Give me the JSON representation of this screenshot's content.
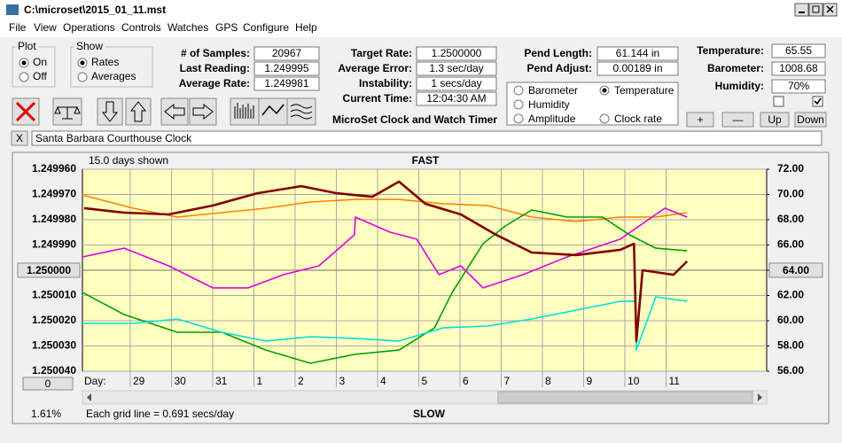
{
  "window": {
    "title": "C:\\microset\\2015_01_11.mst"
  },
  "menu": [
    "File",
    "View",
    "Operations",
    "Controls",
    "Watches",
    "GPS",
    "Configure",
    "Help"
  ],
  "plot": {
    "label": "Plot",
    "options": [
      "On",
      "Off"
    ],
    "selected": 0
  },
  "show": {
    "label": "Show",
    "options": [
      "Rates",
      "Averages"
    ],
    "selected": 0
  },
  "stats": [
    {
      "label": "# of Samples:",
      "value": "20967"
    },
    {
      "label": "Last Reading:",
      "value": "1.249995"
    },
    {
      "label": "Average Rate:",
      "value": "1.249981"
    }
  ],
  "timing": [
    {
      "label": "Target Rate:",
      "value": "1.2500000"
    },
    {
      "label": "Average Error:",
      "value": "1.3 sec/day"
    },
    {
      "label": "Instability:",
      "value": "1 secs/day"
    },
    {
      "label": "Current Time:",
      "value": "12:04:30 AM"
    }
  ],
  "pendulum": [
    {
      "label": "Pend Length:",
      "value": "61.144 in"
    },
    {
      "label": "Pend Adjust:",
      "value": "0.00189 in"
    }
  ],
  "environment": [
    {
      "label": "Temperature:",
      "value": "65.55"
    },
    {
      "label": "Barometer:",
      "value": "1008.68"
    },
    {
      "label": "Humidity:",
      "value": "70%"
    }
  ],
  "checkboxes": [
    false,
    true
  ],
  "app_title": "MicroSet Clock and Watch Timer",
  "buttons": [
    "+",
    "—",
    "Up",
    "Down"
  ],
  "close_button": "X",
  "watch_name": "Santa Barbara Courthouse Clock",
  "chart_data": {
    "type": "line",
    "top_label": "FAST",
    "bottom_label": "SLOW",
    "span_label": "15.0 days shown",
    "x_label": "Day:",
    "footer": "Each grid line = 0.691 secs/day",
    "zoom": "1.61%",
    "left_button": "0",
    "grid": true,
    "selected_series": 1,
    "y_button_tick": 4,
    "y2_button_tick": 4,
    "xlim": [
      0,
      16.6
    ],
    "xticks": [
      {
        "value": 1.16,
        "label": "29"
      },
      {
        "value": 2.16,
        "label": "30"
      },
      {
        "value": 3.16,
        "label": "31"
      },
      {
        "value": 4.16,
        "label": "1"
      },
      {
        "value": 5.16,
        "label": "2"
      },
      {
        "value": 6.16,
        "label": "3"
      },
      {
        "value": 7.16,
        "label": "4"
      },
      {
        "value": 8.16,
        "label": "5"
      },
      {
        "value": 9.16,
        "label": "6"
      },
      {
        "value": 10.16,
        "label": "7"
      },
      {
        "value": 11.16,
        "label": "8"
      },
      {
        "value": 12.16,
        "label": "9"
      },
      {
        "value": 13.16,
        "label": "10"
      },
      {
        "value": 14.16,
        "label": "11"
      }
    ],
    "ylim": [
      1.25004,
      1.24996
    ],
    "yticks": [
      {
        "value": 1.24996,
        "label": "1.249960"
      },
      {
        "value": 1.24997,
        "label": "1.249970"
      },
      {
        "value": 1.24998,
        "label": "1.249980"
      },
      {
        "value": 1.24999,
        "label": "1.249990"
      },
      {
        "value": 1.25,
        "label": "1.250000"
      },
      {
        "value": 1.25001,
        "label": "1.250010"
      },
      {
        "value": 1.25002,
        "label": "1.250020"
      },
      {
        "value": 1.25003,
        "label": "1.250030"
      },
      {
        "value": 1.25004,
        "label": "1.250040"
      }
    ],
    "y2lim": [
      56,
      72
    ],
    "y2ticks": [
      {
        "value": 72,
        "label": "72.00"
      },
      {
        "value": 70,
        "label": "70.00"
      },
      {
        "value": 68,
        "label": "68.00"
      },
      {
        "value": 66,
        "label": "66.00"
      },
      {
        "value": 64,
        "label": "64.00"
      },
      {
        "value": 62,
        "label": "62.00"
      },
      {
        "value": 60,
        "label": "60.00"
      },
      {
        "value": 58,
        "label": "58.00"
      },
      {
        "value": 56,
        "label": "56.00"
      }
    ],
    "series": [
      {
        "name": "Barometer",
        "color": "#ff8000",
        "axis": "y2",
        "x": [
          0,
          1.23,
          2.3,
          3.38,
          4.45,
          5.53,
          6.6,
          7.68,
          8.75,
          9.83,
          10.9,
          11.98,
          13.05,
          13.91,
          14.67
        ],
        "values": [
          69.96,
          68.91,
          68.21,
          68.56,
          68.91,
          69.4,
          69.61,
          69.61,
          69.26,
          69.12,
          68.21,
          67.86,
          68.21,
          68.21,
          68.56
        ]
      },
      {
        "name": "Temperature",
        "color": "#00a000",
        "axis": "y2",
        "x": [
          0,
          1.01,
          2.3,
          3.38,
          4.45,
          5.53,
          6.6,
          7.68,
          8.54,
          8.97,
          9.72,
          10.26,
          10.9,
          11.76,
          12.62,
          13.27,
          13.91,
          14.67
        ],
        "values": [
          62.24,
          60.49,
          59.09,
          59.09,
          57.68,
          56.63,
          57.33,
          57.68,
          59.44,
          62.24,
          66.1,
          67.51,
          68.77,
          68.21,
          68.21,
          66.81,
          65.75,
          65.54
        ]
      },
      {
        "name": "Humidity",
        "color": "#e000e0",
        "axis": "y2",
        "x": [
          0,
          1.01,
          2.09,
          3.16,
          4.02,
          4.88,
          5.74,
          6.6,
          6.62,
          7.46,
          8.11,
          8.65,
          9.18,
          9.72,
          10.69,
          11.76,
          13.05,
          14.13,
          14.67
        ],
        "values": [
          65.05,
          65.75,
          64.35,
          62.6,
          62.6,
          63.65,
          64.35,
          66.81,
          68.21,
          67.02,
          66.46,
          63.65,
          64.35,
          62.6,
          63.65,
          65.05,
          66.46,
          68.91,
          68.21
        ]
      },
      {
        "name": "Amplitude",
        "color": "#00e0e0",
        "axis": "y2",
        "x": [
          0,
          1.23,
          2.3,
          3.38,
          4.45,
          5.53,
          6.6,
          7.68,
          8.75,
          9.83,
          10.9,
          11.98,
          13.05,
          13.42,
          13.44,
          13.91,
          14.67
        ],
        "values": [
          59.79,
          59.79,
          60.14,
          59.09,
          58.39,
          58.74,
          58.6,
          58.39,
          59.44,
          59.58,
          60.14,
          60.84,
          61.54,
          61.54,
          57.68,
          61.89,
          61.54
        ]
      },
      {
        "name": "Clock rate",
        "color": "#800000",
        "x": [
          0.04,
          1.01,
          2.09,
          3.16,
          4.24,
          5.31,
          6.17,
          7.03,
          7.68,
          8.32,
          9.18,
          10.04,
          10.9,
          11.98,
          13.05,
          13.38,
          13.44,
          13.59,
          14.34,
          14.67
        ],
        "values": [
          1.2499754,
          1.2499772,
          1.2499779,
          1.2499744,
          1.2499695,
          1.2499667,
          1.2499695,
          1.2499709,
          1.2499649,
          1.2499737,
          1.2499779,
          1.249986,
          1.249993,
          1.249994,
          1.2499919,
          1.2499895,
          1.2500281,
          1.25,
          1.2500018,
          1.2499965
        ]
      }
    ]
  }
}
